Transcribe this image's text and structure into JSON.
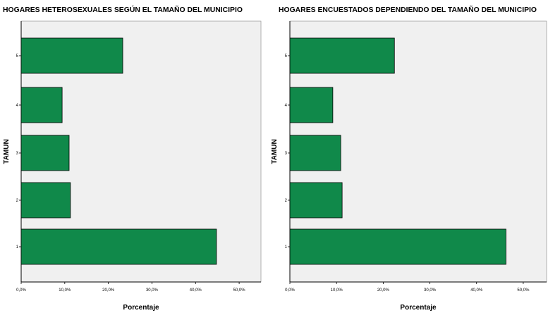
{
  "chart_data": [
    {
      "type": "bar",
      "orientation": "horizontal",
      "title": "HOGARES HETEROSEXUALES SEGÚN EL TAMAÑO DEL MUNICIPIO",
      "xlabel": "Porcentaje",
      "ylabel": "TAMUN",
      "categories": [
        "1",
        "2",
        "3",
        "4",
        "5"
      ],
      "values": [
        44.8,
        11.3,
        11.0,
        9.4,
        23.3
      ],
      "xlim": [
        0,
        55
      ],
      "xticks": [
        "0,0%",
        "10,0%",
        "20,0%",
        "30,0%",
        "40,0%",
        "50,0%"
      ],
      "grid": false,
      "colors": {
        "bar": "#10894a",
        "bar_edge": "#000000",
        "plot_bg": "#f0f0f0"
      }
    },
    {
      "type": "bar",
      "orientation": "horizontal",
      "title": "HOGARES ENCUESTADOS DEPENDIENDO DEL TAMAÑO DEL MUNICIPIO",
      "xlabel": "Porcentaje",
      "ylabel": "TAMUN",
      "categories": [
        "1",
        "2",
        "3",
        "4",
        "5"
      ],
      "values": [
        46.3,
        11.2,
        10.9,
        9.2,
        22.4
      ],
      "xlim": [
        0,
        55
      ],
      "xticks": [
        "0,0%",
        "10,0%",
        "20,0%",
        "30,0%",
        "40,0%",
        "50,0%"
      ],
      "grid": false,
      "colors": {
        "bar": "#10894a",
        "bar_edge": "#000000",
        "plot_bg": "#f0f0f0"
      }
    }
  ]
}
